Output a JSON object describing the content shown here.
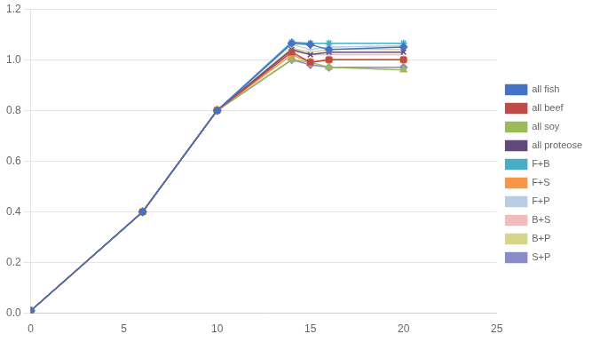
{
  "chart_data": {
    "type": "line",
    "x": [
      0,
      6,
      10,
      14,
      15,
      16,
      20
    ],
    "series": [
      {
        "name": "all fish",
        "color": "#4472C4",
        "marker": "diamond",
        "values": [
          0.01,
          0.4,
          0.8,
          1.065,
          1.06,
          1.04,
          1.05
        ]
      },
      {
        "name": "all beef",
        "color": "#BE4B48",
        "marker": "square",
        "values": [
          0.01,
          0.4,
          0.8,
          1.03,
          0.99,
          1.0,
          1.0
        ]
      },
      {
        "name": "all soy",
        "color": "#9BBB59",
        "marker": "triangle",
        "values": [
          0.01,
          0.4,
          0.8,
          1.0,
          0.99,
          0.97,
          0.96
        ]
      },
      {
        "name": "all proteose",
        "color": "#604A7B",
        "marker": "x",
        "values": [
          0.01,
          0.4,
          0.8,
          1.04,
          1.02,
          1.03,
          1.03
        ]
      },
      {
        "name": "F+B",
        "color": "#4BACC6",
        "marker": "star",
        "values": [
          0.01,
          0.4,
          0.8,
          1.07,
          1.065,
          1.065,
          1.065
        ]
      },
      {
        "name": "F+S",
        "color": "#F79646",
        "marker": "circle",
        "values": [
          0.01,
          0.4,
          0.8,
          1.02,
          0.99,
          1.0,
          1.0
        ]
      },
      {
        "name": "F+P",
        "color": "#B8CCE4",
        "marker": "plus",
        "values": [
          0.01,
          0.4,
          0.8,
          1.06,
          1.04,
          1.05,
          1.055
        ]
      },
      {
        "name": "B+S",
        "color": "#F2BDBD",
        "marker": "none",
        "values": [
          0.01,
          0.4,
          0.8,
          1.035,
          1.02,
          1.02,
          1.02
        ]
      },
      {
        "name": "B+P",
        "color": "#D6D68A",
        "marker": "none",
        "values": [
          0.01,
          0.4,
          0.8,
          1.045,
          1.03,
          1.04,
          1.04
        ]
      },
      {
        "name": "S+P",
        "color": "#8B8BC8",
        "marker": "diamond",
        "values": [
          0.01,
          0.4,
          0.8,
          1.0,
          0.98,
          0.97,
          0.97
        ]
      }
    ],
    "xlim": [
      0,
      25
    ],
    "ylim": [
      0,
      1.2
    ],
    "xticks": [
      0,
      5,
      10,
      15,
      20,
      25
    ],
    "yticks": [
      {
        "value": 0,
        "label": "0.0"
      },
      0.2,
      0.4,
      0.6,
      0.8,
      {
        "value": 1.0,
        "label": "1.0"
      },
      1.2
    ],
    "grid": "y",
    "legend": "right"
  }
}
